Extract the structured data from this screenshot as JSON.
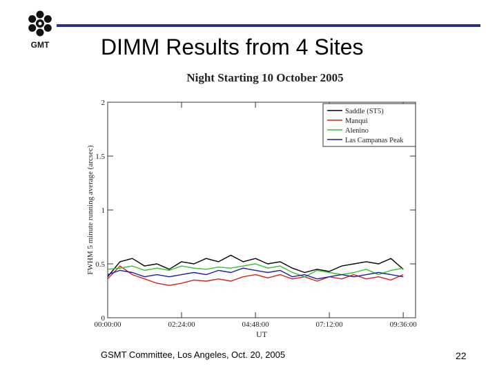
{
  "slide": {
    "logo_text": "GMT",
    "title": "DIMM Results from 4 Sites",
    "footer": "GSMT Committee, Los Angeles, Oct. 20, 2005",
    "page_number": "22"
  },
  "chart_data": {
    "type": "line",
    "title": "Night Starting 10 October 2005",
    "xlabel": "UT",
    "ylabel": "FWHM 5 minute running average (arcsec)",
    "x_ticks": [
      "00:00:00",
      "02:24:00",
      "04:48:00",
      "07:12:00",
      "09:36:00"
    ],
    "x_tick_hours": [
      0,
      2.4,
      4.8,
      7.2,
      9.6
    ],
    "xlim_hours": [
      0,
      10
    ],
    "ylim": [
      0,
      2
    ],
    "y_ticks": [
      "0",
      "0.5",
      "1",
      "1.5",
      "2"
    ],
    "y_tick_values": [
      0,
      0.5,
      1,
      1.5,
      2
    ],
    "legend_position": "top-right",
    "grid": false,
    "x_hours": [
      0.0,
      0.4,
      0.8,
      1.2,
      1.6,
      2.0,
      2.4,
      2.8,
      3.2,
      3.6,
      4.0,
      4.4,
      4.8,
      5.2,
      5.6,
      6.0,
      6.4,
      6.8,
      7.2,
      7.6,
      8.0,
      8.4,
      8.8,
      9.2,
      9.6
    ],
    "series": [
      {
        "name": "Saddle (ST5)",
        "color": "#000000",
        "values": [
          0.38,
          0.52,
          0.55,
          0.48,
          0.5,
          0.45,
          0.52,
          0.5,
          0.55,
          0.52,
          0.58,
          0.52,
          0.55,
          0.5,
          0.52,
          0.46,
          0.42,
          0.45,
          0.43,
          0.48,
          0.5,
          0.52,
          0.5,
          0.55,
          0.45
        ]
      },
      {
        "name": "Manqui",
        "color": "#d42020",
        "values": [
          0.36,
          0.48,
          0.4,
          0.36,
          0.32,
          0.3,
          0.32,
          0.35,
          0.34,
          0.36,
          0.34,
          0.38,
          0.4,
          0.37,
          0.4,
          0.36,
          0.38,
          0.34,
          0.38,
          0.36,
          0.4,
          0.36,
          0.38,
          0.35,
          0.4
        ]
      },
      {
        "name": "Alenino",
        "color": "#2dc42d",
        "values": [
          0.45,
          0.46,
          0.48,
          0.44,
          0.46,
          0.44,
          0.48,
          0.46,
          0.45,
          0.47,
          0.46,
          0.48,
          0.5,
          0.46,
          0.48,
          0.42,
          0.38,
          0.44,
          0.42,
          0.4,
          0.42,
          0.45,
          0.4,
          0.44,
          0.46
        ]
      },
      {
        "name": "Las Campanas Peak",
        "color": "#1c1ca8",
        "values": [
          0.4,
          0.44,
          0.42,
          0.38,
          0.4,
          0.38,
          0.4,
          0.42,
          0.4,
          0.44,
          0.42,
          0.46,
          0.44,
          0.42,
          0.44,
          0.38,
          0.4,
          0.36,
          0.38,
          0.4,
          0.38,
          0.4,
          0.42,
          0.4,
          0.38
        ]
      }
    ]
  }
}
